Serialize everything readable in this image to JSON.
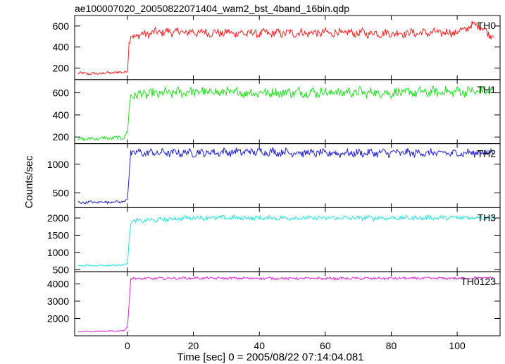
{
  "chart_data": {
    "type": "line",
    "title": "ae100007020_20050822071404_wam2_bst_4band_16bin.qdp",
    "xlabel": "Time [sec] 0 = 2005/08/22 07:14:04.081",
    "ylabel": "Counts/sec",
    "xlim": [
      -16,
      113
    ],
    "x_ticks": [
      0,
      20,
      40,
      60,
      80,
      100
    ],
    "grid": false,
    "shared_x": true,
    "panels": [
      {
        "name": "TH0",
        "color": "#ff2020",
        "ylim": [
          90,
          700
        ],
        "y_ticks": [
          200,
          400,
          600
        ],
        "pre_level": 150,
        "post_level": 535,
        "noise": 35,
        "samples": [
          [
            -15,
            150
          ],
          [
            -10,
            145
          ],
          [
            -5,
            155
          ],
          [
            -1,
            160
          ],
          [
            0,
            180
          ],
          [
            0.5,
            420
          ],
          [
            1,
            500
          ],
          [
            10,
            545
          ],
          [
            20,
            540
          ],
          [
            40,
            530
          ],
          [
            60,
            535
          ],
          [
            80,
            530
          ],
          [
            100,
            540
          ],
          [
            106,
            620
          ],
          [
            110,
            520
          ]
        ]
      },
      {
        "name": "TH1",
        "color": "#20e020",
        "ylim": [
          140,
          720
        ],
        "y_ticks": [
          200,
          400,
          600
        ],
        "pre_level": 185,
        "post_level": 605,
        "noise": 40,
        "samples": [
          [
            -15,
            180
          ],
          [
            -5,
            190
          ],
          [
            -1,
            195
          ],
          [
            0,
            250
          ],
          [
            1,
            580
          ],
          [
            20,
            610
          ],
          [
            40,
            600
          ],
          [
            60,
            605
          ],
          [
            80,
            600
          ],
          [
            100,
            610
          ],
          [
            110,
            615
          ]
        ]
      },
      {
        "name": "TH2",
        "color": "#2020d0",
        "ylim": [
          240,
          1360
        ],
        "y_ticks": [
          500,
          1000
        ],
        "pre_level": 330,
        "post_level": 1200,
        "noise": 60,
        "samples": [
          [
            -15,
            330
          ],
          [
            -5,
            340
          ],
          [
            -1,
            345
          ],
          [
            0,
            400
          ],
          [
            1,
            1200
          ],
          [
            20,
            1200
          ],
          [
            40,
            1220
          ],
          [
            60,
            1190
          ],
          [
            80,
            1200
          ],
          [
            100,
            1190
          ],
          [
            110,
            1210
          ]
        ]
      },
      {
        "name": "TH3",
        "color": "#20e0e0",
        "ylim": [
          440,
          2300
        ],
        "y_ticks": [
          500,
          1000,
          1500,
          2000
        ],
        "pre_level": 620,
        "post_level": 2000,
        "noise": 55,
        "samples": [
          [
            -15,
            620
          ],
          [
            -5,
            625
          ],
          [
            -1,
            640
          ],
          [
            0,
            700
          ],
          [
            1,
            1900
          ],
          [
            20,
            2010
          ],
          [
            40,
            2000
          ],
          [
            60,
            2000
          ],
          [
            80,
            2000
          ],
          [
            100,
            2010
          ],
          [
            110,
            2020
          ]
        ]
      },
      {
        "name": "TH0123",
        "color": "#e020e0",
        "ylim": [
          1000,
          4700
        ],
        "y_ticks": [
          2000,
          3000,
          4000
        ],
        "pre_level": 1250,
        "post_level": 4320,
        "noise": 60,
        "samples": [
          [
            -15,
            1250
          ],
          [
            -5,
            1270
          ],
          [
            -1,
            1300
          ],
          [
            0,
            1500
          ],
          [
            1,
            4300
          ],
          [
            20,
            4330
          ],
          [
            40,
            4320
          ],
          [
            60,
            4310
          ],
          [
            80,
            4320
          ],
          [
            100,
            4320
          ],
          [
            110,
            4350
          ]
        ]
      }
    ]
  }
}
